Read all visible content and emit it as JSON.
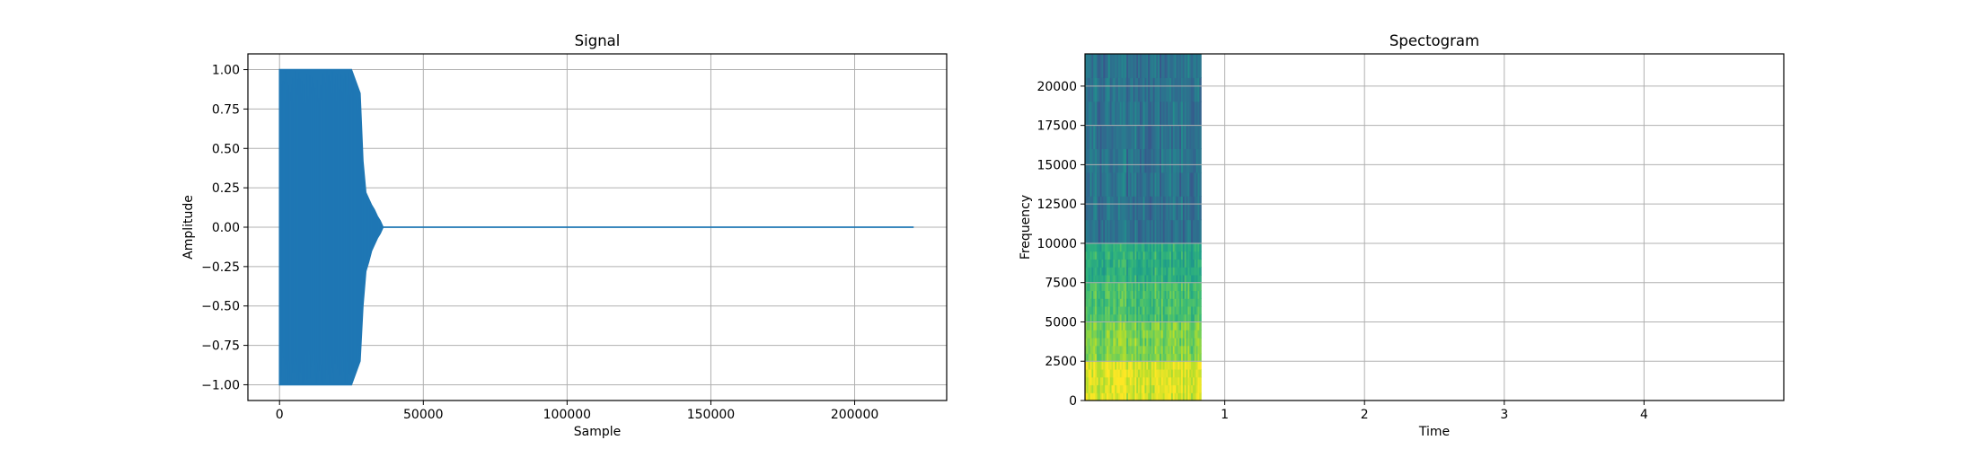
{
  "chart_data": [
    {
      "type": "line",
      "title": "Signal",
      "xlabel": "Sample",
      "ylabel": "Amplitude",
      "xlim": [
        -11000,
        232000
      ],
      "ylim": [
        -1.1,
        1.1
      ],
      "grid": true,
      "x_ticks": [
        0,
        50000,
        100000,
        150000,
        200000
      ],
      "x_tick_labels": [
        "0",
        "50000",
        "100000",
        "150000",
        "200000"
      ],
      "y_ticks": [
        -1.0,
        -0.75,
        -0.5,
        -0.25,
        0.0,
        0.25,
        0.5,
        0.75,
        1.0
      ],
      "y_tick_labels": [
        "−1.00",
        "−0.75",
        "−0.50",
        "−0.25",
        "0.00",
        "0.25",
        "0.50",
        "0.75",
        "1.00"
      ],
      "series": [
        {
          "color": "#1f77b4",
          "n_samples": 220500,
          "envelope": {
            "x": [
              0,
              2000,
              5000,
              10000,
              15000,
              20000,
              25000,
              28000,
              29000,
              30000,
              31000,
              32000,
              33000,
              34000,
              35000,
              36000,
              220500
            ],
            "upper": [
              1.0,
              1.0,
              1.0,
              1.0,
              1.0,
              1.0,
              1.0,
              0.85,
              0.42,
              0.22,
              0.18,
              0.14,
              0.11,
              0.07,
              0.04,
              0.0,
              0.0
            ],
            "lower": [
              -1.0,
              -1.0,
              -1.0,
              -1.0,
              -1.0,
              -1.0,
              -1.0,
              -0.85,
              -0.5,
              -0.28,
              -0.22,
              -0.15,
              -0.11,
              -0.07,
              -0.04,
              0.0,
              0.0
            ]
          }
        }
      ]
    },
    {
      "type": "heatmap",
      "title": "Spectogram",
      "xlabel": "Time",
      "ylabel": "Frequency",
      "xlim": [
        0.0,
        5.0
      ],
      "ylim": [
        0,
        22050
      ],
      "grid": true,
      "x_ticks": [
        1,
        2,
        3,
        4
      ],
      "x_tick_labels": [
        "1",
        "2",
        "3",
        "4"
      ],
      "y_ticks": [
        0,
        2500,
        5000,
        7500,
        10000,
        12500,
        15000,
        17500,
        20000
      ],
      "y_tick_labels": [
        "0",
        "2500",
        "5000",
        "7500",
        "10000",
        "12500",
        "15000",
        "17500",
        "20000"
      ],
      "colormap": "viridis",
      "data_extent_time": [
        0.0,
        0.83
      ],
      "bands": [
        {
          "freq": [
            0,
            2500
          ],
          "level": 0.95
        },
        {
          "freq": [
            2500,
            5000
          ],
          "level": 0.8
        },
        {
          "freq": [
            5000,
            7500
          ],
          "level": 0.7
        },
        {
          "freq": [
            7500,
            10000
          ],
          "level": 0.62
        },
        {
          "freq": [
            10000,
            22050
          ],
          "level": 0.38
        }
      ]
    }
  ]
}
